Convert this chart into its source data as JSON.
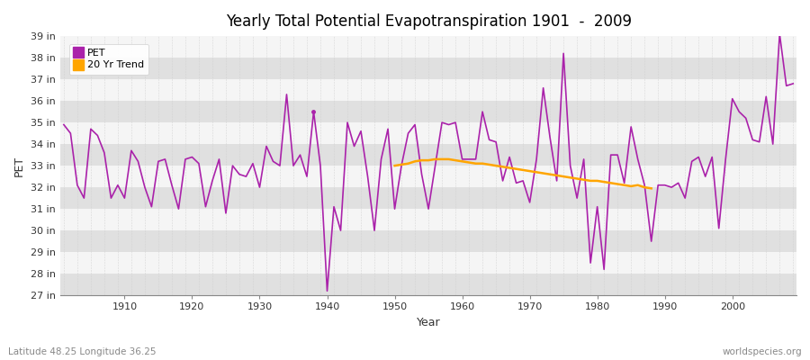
{
  "title": "Yearly Total Potential Evapotranspiration 1901  -  2009",
  "ylabel": "PET",
  "xlabel": "Year",
  "subtitle_left": "Latitude 48.25 Longitude 36.25",
  "subtitle_right": "worldspecies.org",
  "pet_color": "#aa22aa",
  "trend_color": "#ffa500",
  "fig_bg_color": "#ffffff",
  "plot_bg_color": "#f0f0f0",
  "band_color_dark": "#e0e0e0",
  "band_color_light": "#f5f5f5",
  "grid_color": "#cccccc",
  "ylim_min": 27,
  "ylim_max": 39,
  "xlim_min": 1901,
  "xlim_max": 2009,
  "pet_data": {
    "1901": 34.9,
    "1902": 34.5,
    "1903": 32.1,
    "1904": 31.5,
    "1905": 34.7,
    "1906": 34.4,
    "1907": 33.6,
    "1908": 31.5,
    "1909": 32.1,
    "1910": 31.5,
    "1911": 33.7,
    "1912": 33.2,
    "1913": 32.0,
    "1914": 31.1,
    "1915": 33.2,
    "1916": 33.3,
    "1917": 32.1,
    "1918": 31.0,
    "1919": 33.3,
    "1920": 33.4,
    "1921": 33.1,
    "1922": 31.1,
    "1923": 32.3,
    "1924": 33.3,
    "1925": 30.8,
    "1926": 33.0,
    "1927": 32.6,
    "1928": 32.5,
    "1929": 33.1,
    "1930": 32.0,
    "1931": 33.9,
    "1932": 33.2,
    "1933": 33.0,
    "1934": 36.3,
    "1935": 33.0,
    "1936": 33.5,
    "1937": 32.5,
    "1938": 35.5,
    "1939": 33.0,
    "1940": 27.2,
    "1941": 31.1,
    "1942": 30.0,
    "1943": 35.0,
    "1944": 33.9,
    "1945": 34.6,
    "1946": 32.5,
    "1947": 30.0,
    "1948": 33.3,
    "1949": 34.7,
    "1950": 31.0,
    "1951": 33.0,
    "1952": 34.5,
    "1953": 34.9,
    "1954": 32.6,
    "1955": 31.0,
    "1956": 33.0,
    "1957": 35.0,
    "1958": 34.9,
    "1959": 35.0,
    "1960": 33.3,
    "1961": 33.3,
    "1962": 33.3,
    "1963": 35.5,
    "1964": 34.2,
    "1965": 34.1,
    "1966": 32.3,
    "1967": 33.4,
    "1968": 32.2,
    "1969": 32.3,
    "1970": 31.3,
    "1971": 33.3,
    "1972": 36.6,
    "1973": 34.3,
    "1974": 32.3,
    "1975": 38.2,
    "1976": 33.0,
    "1977": 31.5,
    "1978": 33.3,
    "1979": 28.5,
    "1980": 31.1,
    "1981": 28.2,
    "1982": 33.5,
    "1983": 33.5,
    "1984": 32.2,
    "1985": 34.8,
    "1986": 33.3,
    "1987": 32.1,
    "1988": 29.5,
    "1989": 32.1,
    "1990": 32.1,
    "1991": 32.0,
    "1992": 32.2,
    "1993": 31.5,
    "1994": 33.2,
    "1995": 33.4,
    "1996": 32.5,
    "1997": 33.4,
    "1998": 30.1,
    "1999": 33.3,
    "2000": 36.1,
    "2001": 35.5,
    "2002": 35.2,
    "2003": 34.2,
    "2004": 34.1,
    "2005": 36.2,
    "2006": 34.0,
    "2007": 39.1,
    "2008": 36.7,
    "2009": 36.8
  },
  "trend_data": {
    "1950": 33.0,
    "1951": 33.05,
    "1952": 33.1,
    "1953": 33.2,
    "1954": 33.25,
    "1955": 33.25,
    "1956": 33.3,
    "1957": 33.3,
    "1958": 33.3,
    "1959": 33.25,
    "1960": 33.2,
    "1961": 33.15,
    "1962": 33.1,
    "1963": 33.1,
    "1964": 33.05,
    "1965": 33.0,
    "1966": 32.95,
    "1967": 32.9,
    "1968": 32.85,
    "1969": 32.8,
    "1970": 32.75,
    "1971": 32.7,
    "1972": 32.65,
    "1973": 32.6,
    "1974": 32.55,
    "1975": 32.5,
    "1976": 32.45,
    "1977": 32.4,
    "1978": 32.35,
    "1979": 32.3,
    "1980": 32.3,
    "1981": 32.25,
    "1982": 32.2,
    "1983": 32.15,
    "1984": 32.1,
    "1985": 32.05,
    "1986": 32.1,
    "1987": 32.0,
    "1988": 31.95
  },
  "legend_pet_label": "PET",
  "legend_trend_label": "20 Yr Trend",
  "dot_year": 1938,
  "dot_value": 35.5
}
